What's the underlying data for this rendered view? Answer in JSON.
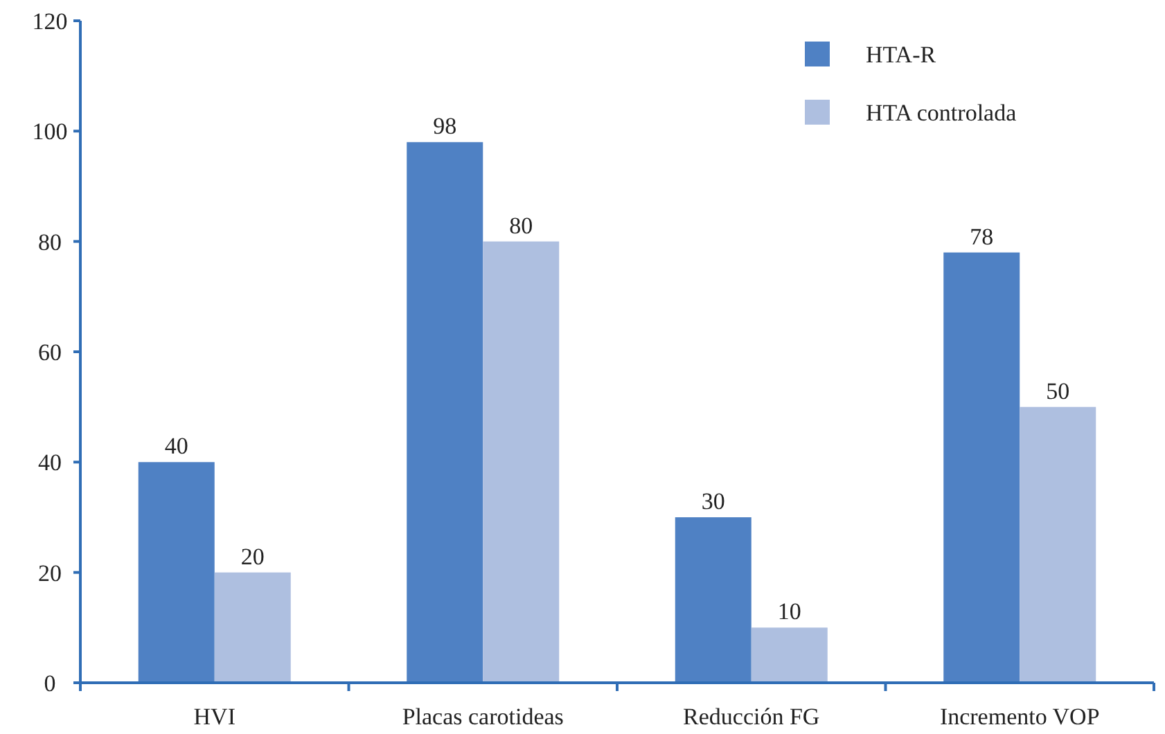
{
  "chart_data": {
    "type": "bar",
    "categories": [
      "HVI",
      "Placas carotideas",
      "Reducción FG",
      "Incremento VOP"
    ],
    "series": [
      {
        "name": "HTA-R",
        "color": "#4f81c4",
        "values": [
          40,
          98,
          30,
          78
        ]
      },
      {
        "name": "HTA controlada",
        "color": "#aebfe0",
        "values": [
          20,
          80,
          10,
          50
        ]
      }
    ],
    "ylim": [
      0,
      120
    ],
    "yticks": [
      0,
      20,
      40,
      60,
      80,
      100,
      120
    ],
    "data_labels": true,
    "legend": "top right",
    "grid": false
  }
}
